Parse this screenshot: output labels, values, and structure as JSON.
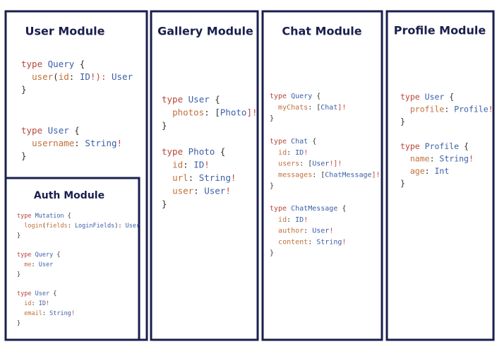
{
  "modules": [
    {
      "title": "User Module",
      "blocks": [
        [
          "type Query {",
          "  user(id: ID!): User",
          "}"
        ],
        [
          "type User {",
          "  username: String!",
          "}"
        ]
      ]
    },
    {
      "title": "Gallery Module",
      "blocks": [
        [
          "type User {",
          "  photos: [Photo]!",
          "}"
        ],
        [
          "type Photo {",
          "  id: ID!",
          "  url: String!",
          "  user: User!",
          "}"
        ]
      ]
    },
    {
      "title": "Chat Module",
      "blocks": [
        [
          "type Query {",
          "  myChats: [Chat]!",
          "}"
        ],
        [
          "type Chat {",
          "  id: ID!",
          "  users: [User!]!",
          "  messages: [ChatMessage]!",
          "}"
        ],
        [
          "type ChatMessage {",
          "  id: ID!",
          "  author: User!",
          "  content: String!",
          "}"
        ]
      ]
    },
    {
      "title": "Profile Module",
      "blocks": [
        [
          "type User {",
          "  profile: Profile!",
          "}"
        ],
        [
          "type Profile {",
          "  name: String!",
          "  age: Int",
          "}"
        ]
      ]
    },
    {
      "title": "Auth Module",
      "blocks": [
        [
          "type Mutation {",
          "  login(fields: LoginFields): User",
          "}"
        ],
        [
          "type Query {",
          "  me: User",
          "}"
        ],
        [
          "type User {",
          "  id: ID!",
          "  email: String!",
          "}"
        ]
      ]
    }
  ]
}
